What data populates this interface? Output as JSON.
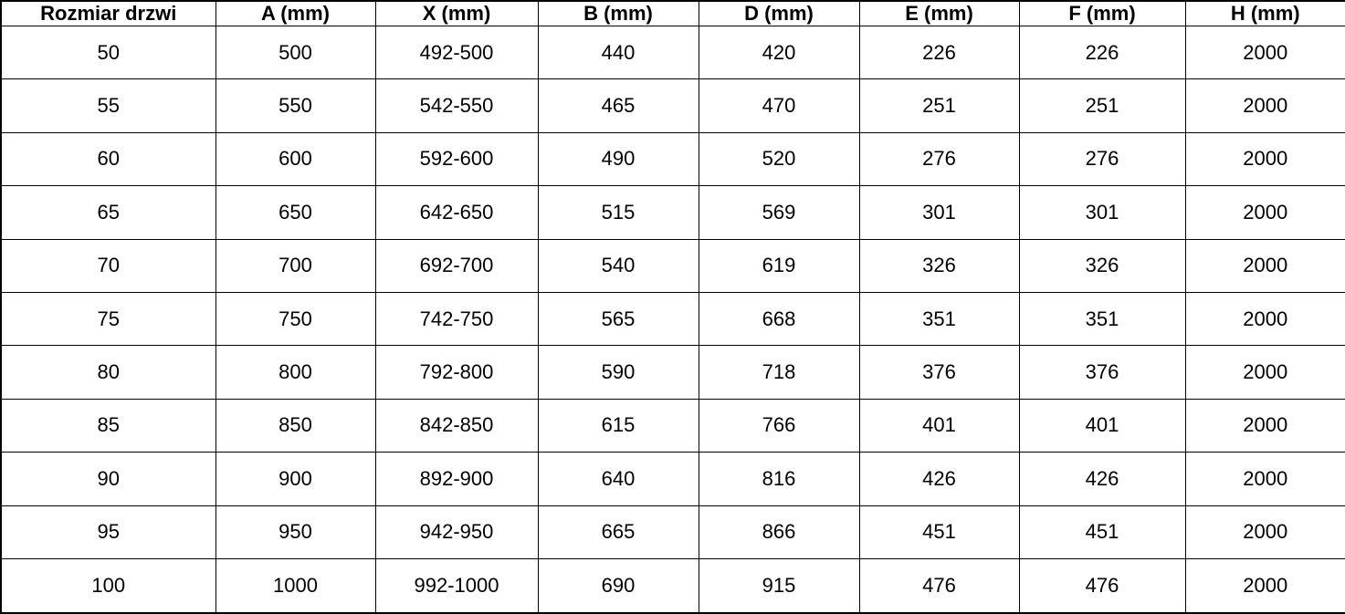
{
  "colors": {
    "border": "#000000",
    "background": "#ffffff",
    "text": "#000000"
  },
  "table": {
    "columns": [
      "Rozmiar drzwi",
      "A (mm)",
      "X (mm)",
      "B (mm)",
      "D (mm)",
      "E (mm)",
      "F (mm)",
      "H (mm)"
    ],
    "rows": [
      [
        "50",
        "500",
        "492-500",
        "440",
        "420",
        "226",
        "226",
        "2000"
      ],
      [
        "55",
        "550",
        "542-550",
        "465",
        "470",
        "251",
        "251",
        "2000"
      ],
      [
        "60",
        "600",
        "592-600",
        "490",
        "520",
        "276",
        "276",
        "2000"
      ],
      [
        "65",
        "650",
        "642-650",
        "515",
        "569",
        "301",
        "301",
        "2000"
      ],
      [
        "70",
        "700",
        "692-700",
        "540",
        "619",
        "326",
        "326",
        "2000"
      ],
      [
        "75",
        "750",
        "742-750",
        "565",
        "668",
        "351",
        "351",
        "2000"
      ],
      [
        "80",
        "800",
        "792-800",
        "590",
        "718",
        "376",
        "376",
        "2000"
      ],
      [
        "85",
        "850",
        "842-850",
        "615",
        "766",
        "401",
        "401",
        "2000"
      ],
      [
        "90",
        "900",
        "892-900",
        "640",
        "816",
        "426",
        "426",
        "2000"
      ],
      [
        "95",
        "950",
        "942-950",
        "665",
        "866",
        "451",
        "451",
        "2000"
      ],
      [
        "100",
        "1000",
        "992-1000",
        "690",
        "915",
        "476",
        "476",
        "2000"
      ]
    ]
  },
  "chart_data": {
    "type": "table",
    "title": "",
    "columns": [
      "Rozmiar drzwi",
      "A (mm)",
      "X (mm)",
      "B (mm)",
      "D (mm)",
      "E (mm)",
      "F (mm)",
      "H (mm)"
    ],
    "rows": [
      [
        "50",
        "500",
        "492-500",
        "440",
        "420",
        "226",
        "226",
        "2000"
      ],
      [
        "55",
        "550",
        "542-550",
        "465",
        "470",
        "251",
        "251",
        "2000"
      ],
      [
        "60",
        "600",
        "592-600",
        "490",
        "520",
        "276",
        "276",
        "2000"
      ],
      [
        "65",
        "650",
        "642-650",
        "515",
        "569",
        "301",
        "301",
        "2000"
      ],
      [
        "70",
        "700",
        "692-700",
        "540",
        "619",
        "326",
        "326",
        "2000"
      ],
      [
        "75",
        "750",
        "742-750",
        "565",
        "668",
        "351",
        "351",
        "2000"
      ],
      [
        "80",
        "800",
        "792-800",
        "590",
        "718",
        "376",
        "376",
        "2000"
      ],
      [
        "85",
        "850",
        "842-850",
        "615",
        "766",
        "401",
        "401",
        "2000"
      ],
      [
        "90",
        "900",
        "892-900",
        "640",
        "816",
        "426",
        "426",
        "2000"
      ],
      [
        "95",
        "950",
        "942-950",
        "665",
        "866",
        "451",
        "451",
        "2000"
      ],
      [
        "100",
        "1000",
        "992-1000",
        "690",
        "915",
        "476",
        "476",
        "2000"
      ]
    ]
  }
}
